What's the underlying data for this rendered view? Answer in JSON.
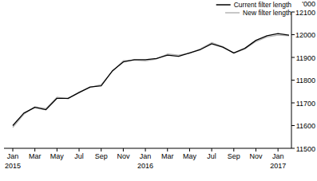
{
  "chart_data": {
    "type": "line",
    "y_label": "'000",
    "categories": [
      "Jan 2015",
      null,
      "Mar",
      null,
      "May",
      null,
      "Jul",
      null,
      "Sep",
      null,
      "Nov",
      null,
      "Jan 2016",
      null,
      "Mar",
      null,
      "May",
      null,
      "Jul",
      null,
      "Sep",
      null,
      "Nov",
      null,
      "Jan 2017",
      null
    ],
    "series": [
      {
        "name": "Current filter length",
        "color": "#000000",
        "values": [
          11600,
          11655,
          11680,
          11670,
          11720,
          11720,
          11745,
          11770,
          11775,
          11840,
          11880,
          11890,
          11890,
          11895,
          11910,
          11905,
          11920,
          11935,
          11960,
          11945,
          11920,
          11940,
          11975,
          11995,
          12005,
          11998
        ]
      },
      {
        "name": "New filter length",
        "color": "#b4b4b4",
        "values": [
          11592,
          11650,
          11683,
          11675,
          11725,
          11718,
          11748,
          11768,
          11780,
          11838,
          11885,
          11888,
          11885,
          11893,
          11915,
          11910,
          11918,
          11938,
          11965,
          11948,
          11918,
          11937,
          11970,
          11990,
          11998,
          11995
        ]
      }
    ],
    "ylim": [
      11500,
      12100
    ],
    "yticks": [
      11500,
      11600,
      11700,
      11800,
      11900,
      12000,
      12100
    ],
    "grid": false,
    "legend": "top-right"
  }
}
